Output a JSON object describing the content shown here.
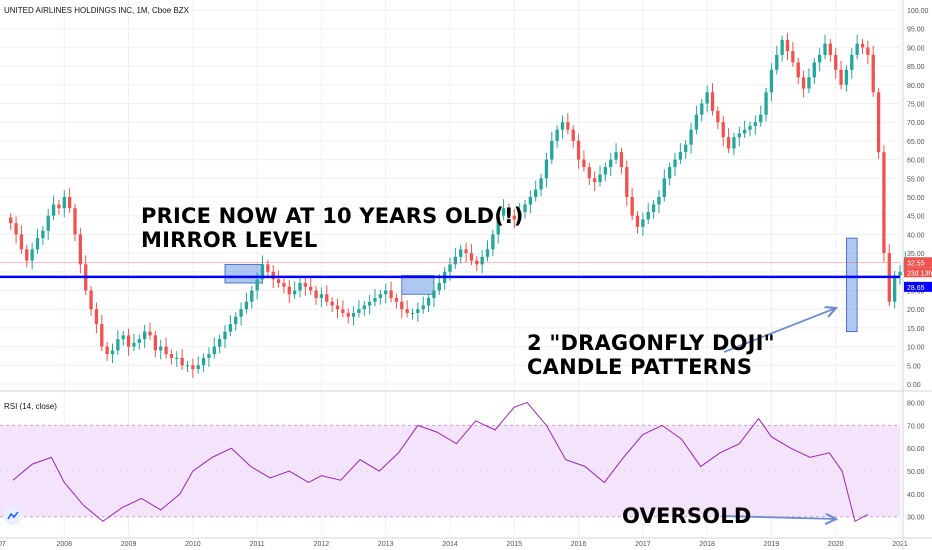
{
  "header": {
    "ticker_line": "UNITED AIRLINES HOLDINGS INC, 1M, Cboe BZX"
  },
  "rsi_panel": {
    "label": "RSI (14, close)"
  },
  "annotations": {
    "mirror_line1": "PRICE NOW AT 10 YEARS OLD(!)",
    "mirror_line2": "MIRROR LEVEL",
    "doji_line1": "2 \"DRAGONFLY DOJI\"",
    "doji_line2": "CANDLE PATTERNS",
    "oversold": "OVERSOLD"
  },
  "colors": {
    "up": "#26a69a",
    "down": "#ef5350",
    "mirror_line": "#0000ff",
    "highlight_fill": "#4c84e3",
    "rsi_line": "#9c27b0",
    "rsi_band": "#f3e3fb",
    "arrow": "#6f8fcc",
    "price_tag": "#ef5350",
    "time_tag": "#ef5350",
    "level_tag": "#0000ff"
  },
  "chart_data": [
    {
      "type": "candlestick",
      "title": "UNITED AIRLINES HOLDINGS INC, 1M, Cboe BZX",
      "x_ticks": [
        "2008",
        "2009",
        "2010",
        "2011",
        "2012",
        "2013",
        "2014",
        "2015",
        "2016",
        "2017",
        "2018",
        "2019",
        "2020",
        "2021"
      ],
      "y_ticks": [
        "0.00",
        "5.00",
        "10.00",
        "15.00",
        "20.00",
        "25.00",
        "30.00",
        "35.00",
        "40.00",
        "45.00",
        "50.00",
        "55.00",
        "60.00",
        "65.00",
        "70.00",
        "75.00",
        "80.00",
        "85.00",
        "90.00",
        "95.00",
        "100.00"
      ],
      "ylim": [
        0,
        100
      ],
      "xlim": [
        2007.0,
        2021.0
      ],
      "price_tags": {
        "last_price": "32.55",
        "countdown": "23d 13h",
        "mirror_level": "28.65"
      },
      "mirror_level": 28.65,
      "candles_start": "2007-03",
      "close": [
        43,
        40,
        36,
        33,
        36,
        39,
        41,
        45,
        48,
        47,
        50,
        47,
        40,
        32,
        25,
        20,
        16,
        10,
        8,
        9,
        12,
        13,
        10,
        11,
        12,
        14,
        13,
        9,
        10,
        8,
        7,
        7,
        5,
        5,
        4,
        5,
        7,
        8,
        10,
        12,
        14,
        16,
        18,
        20,
        22,
        25,
        28,
        32,
        30,
        28,
        27,
        26,
        24,
        25,
        27,
        26,
        25,
        23,
        24,
        22,
        21,
        20,
        19,
        18,
        19,
        20,
        21,
        22,
        23,
        24,
        25,
        23,
        22,
        20,
        19,
        19,
        20,
        21,
        23,
        25,
        27,
        30,
        32,
        34,
        36,
        35,
        33,
        32,
        34,
        36,
        40,
        45,
        47,
        45,
        44,
        46,
        48,
        50,
        52,
        55,
        60,
        65,
        68,
        70,
        68,
        65,
        60,
        58,
        55,
        54,
        56,
        58,
        60,
        62,
        58,
        50,
        45,
        42,
        44,
        46,
        48,
        50,
        55,
        58,
        60,
        62,
        64,
        68,
        72,
        75,
        78,
        73,
        70,
        66,
        63,
        66,
        67,
        68,
        69,
        70,
        72,
        78,
        84,
        88,
        92,
        89,
        86,
        82,
        79,
        82,
        86,
        88,
        91,
        88,
        84,
        80,
        84,
        88,
        91,
        90,
        88,
        78,
        62,
        35,
        22,
        29,
        30,
        33
      ],
      "dragonfly_doji_zone": {
        "x_range": [
          "2020-03",
          "2020-05"
        ],
        "y_range": [
          14,
          39
        ]
      },
      "mirror_zones": [
        {
          "x_range": [
            "2010-07",
            "2011-02"
          ],
          "y_range": [
            27,
            32
          ]
        },
        {
          "x_range": [
            "2013-04",
            "2013-10"
          ],
          "y_range": [
            24,
            29
          ]
        }
      ]
    },
    {
      "type": "line",
      "title": "RSI (14, close)",
      "y_ticks": [
        "30.00",
        "40.00",
        "50.00",
        "60.00",
        "70.00",
        "80.00"
      ],
      "ylim": [
        22,
        82
      ],
      "band": [
        30,
        70
      ],
      "x": [
        2007.2,
        2007.5,
        2007.8,
        2008.0,
        2008.3,
        2008.6,
        2008.9,
        2009.2,
        2009.5,
        2009.8,
        2010.0,
        2010.3,
        2010.6,
        2010.9,
        2011.2,
        2011.5,
        2011.8,
        2012.0,
        2012.3,
        2012.6,
        2012.9,
        2013.2,
        2013.5,
        2013.8,
        2014.1,
        2014.4,
        2014.7,
        2015.0,
        2015.2,
        2015.5,
        2015.8,
        2016.1,
        2016.4,
        2016.7,
        2017.0,
        2017.3,
        2017.6,
        2017.9,
        2018.2,
        2018.5,
        2018.8,
        2019.0,
        2019.3,
        2019.6,
        2019.9,
        2020.1,
        2020.3,
        2020.5
      ],
      "y": [
        46,
        53,
        56,
        45,
        35,
        28,
        34,
        38,
        33,
        40,
        50,
        56,
        60,
        52,
        47,
        50,
        45,
        48,
        46,
        55,
        50,
        58,
        70,
        67,
        62,
        72,
        68,
        78,
        80,
        70,
        55,
        52,
        45,
        56,
        66,
        70,
        64,
        52,
        58,
        62,
        73,
        65,
        60,
        56,
        58,
        50,
        28,
        31
      ]
    }
  ]
}
